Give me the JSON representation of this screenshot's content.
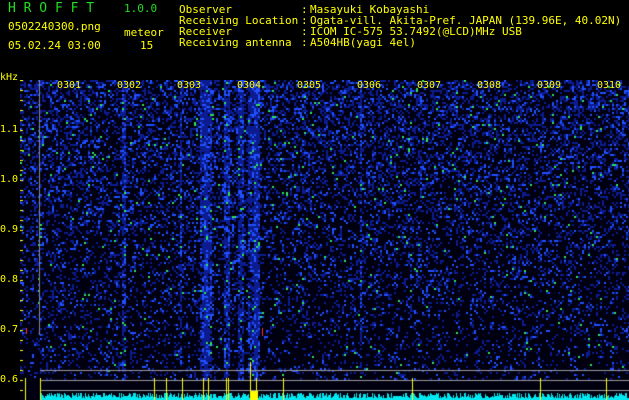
{
  "app": {
    "title": "H R O F F T",
    "version": "1.0.0"
  },
  "file": {
    "name": "0502240300.png",
    "datetime": "05.02.24 03:00"
  },
  "meteor": {
    "label": "meteor",
    "count": "15"
  },
  "info": [
    {
      "label": "Observer",
      "value": "Masayuki Kobayashi"
    },
    {
      "label": "Receiving Location",
      "value": "Ogata-vill. Akita-Pref. JAPAN (139.96E, 40.02N)"
    },
    {
      "label": "Receiver",
      "value": "ICOM IC-575 53.7492(@LCD)MHz USB"
    },
    {
      "label": "Receiving antenna",
      "value": "A504HB(yagi 4el)"
    }
  ],
  "spectrogram": {
    "unit": "kHz",
    "y_ticks": [
      "1.1",
      "1.0",
      "0.9",
      "0.8",
      "0.7",
      "0.6"
    ],
    "minute_labels": [
      "0301",
      "0302",
      "0303",
      "0304",
      "0305",
      "0306",
      "0307",
      "0308",
      "0309",
      "0310"
    ],
    "colors": {
      "background": "#000020",
      "noise": "#1030c0",
      "signal": "#20e020",
      "marker": "#ffff00",
      "level": "#00e8f0"
    }
  }
}
